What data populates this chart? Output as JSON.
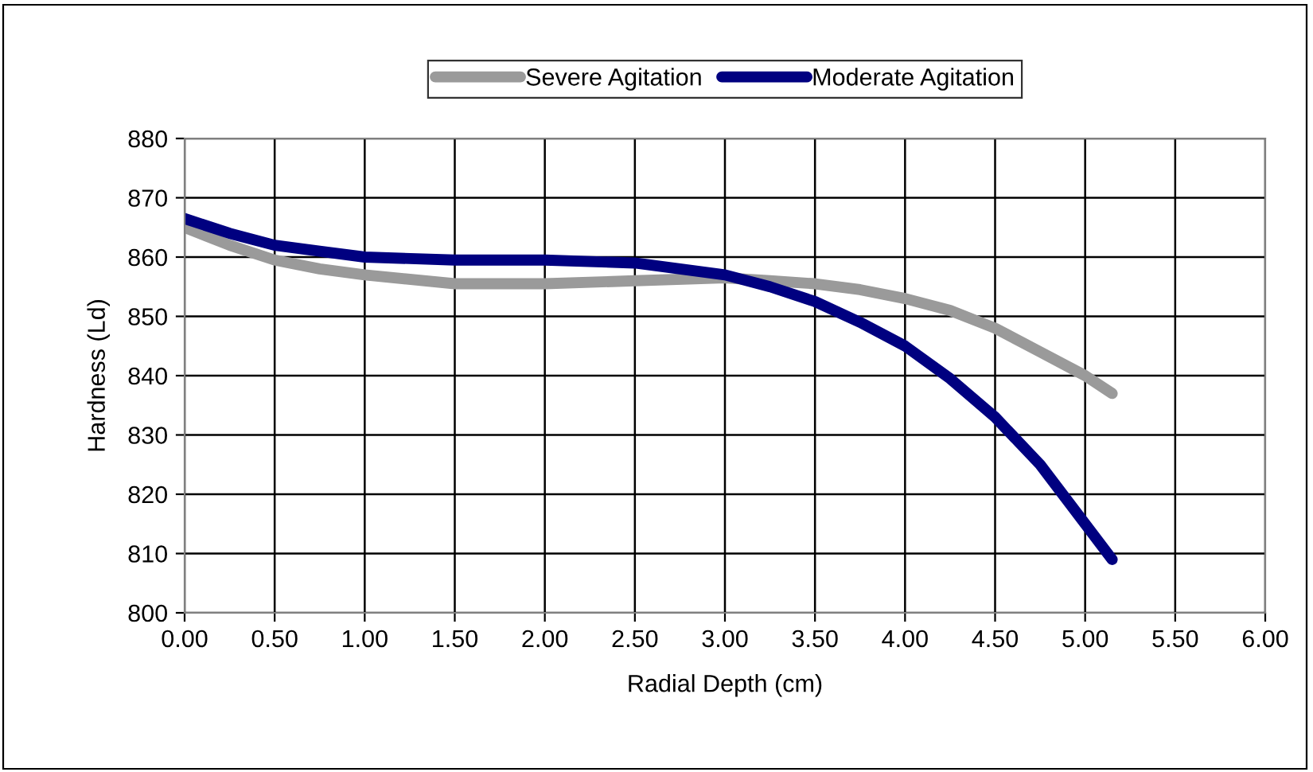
{
  "chart_data": {
    "type": "line",
    "xlabel": "Radial Depth (cm)",
    "ylabel": "Hardness (Ld)",
    "x": [
      0,
      0.25,
      0.5,
      0.75,
      1.0,
      1.5,
      2.0,
      2.5,
      3.0,
      3.25,
      3.5,
      3.75,
      4.0,
      4.25,
      4.5,
      4.75,
      5.0,
      5.15
    ],
    "series": [
      {
        "name": "Severe Agitation",
        "color": "#9a9a9a",
        "values": [
          865,
          862,
          859.5,
          858,
          857,
          855.5,
          855.5,
          856,
          856.5,
          856,
          855.5,
          854.5,
          853,
          851,
          848,
          844,
          840,
          837
        ]
      },
      {
        "name": "Moderate Agitation",
        "color": "#000080",
        "values": [
          866.5,
          864,
          862,
          861,
          860,
          859.5,
          859.5,
          859,
          857,
          855,
          852.5,
          849,
          845,
          839.5,
          833,
          825,
          815,
          809
        ]
      }
    ],
    "xlim": [
      0,
      6
    ],
    "xticks": [
      {
        "value": 0,
        "label": "0.00"
      },
      {
        "value": 0.5,
        "label": "0.50"
      },
      {
        "value": 1,
        "label": "1.00"
      },
      {
        "value": 1.5,
        "label": "1.50"
      },
      {
        "value": 2,
        "label": "2.00"
      },
      {
        "value": 2.5,
        "label": "2.50"
      },
      {
        "value": 3,
        "label": "3.00"
      },
      {
        "value": 3.5,
        "label": "3.50"
      },
      {
        "value": 4,
        "label": "4.00"
      },
      {
        "value": 4.5,
        "label": "4.50"
      },
      {
        "value": 5,
        "label": "5.00"
      },
      {
        "value": 5.5,
        "label": "5.50"
      },
      {
        "value": 6,
        "label": "6.00"
      }
    ],
    "ylim": [
      800,
      880
    ],
    "yticks": [
      800,
      810,
      820,
      830,
      840,
      850,
      860,
      870,
      880
    ],
    "grid": true,
    "legend": "top",
    "marker": "none",
    "line_style": "solid"
  }
}
